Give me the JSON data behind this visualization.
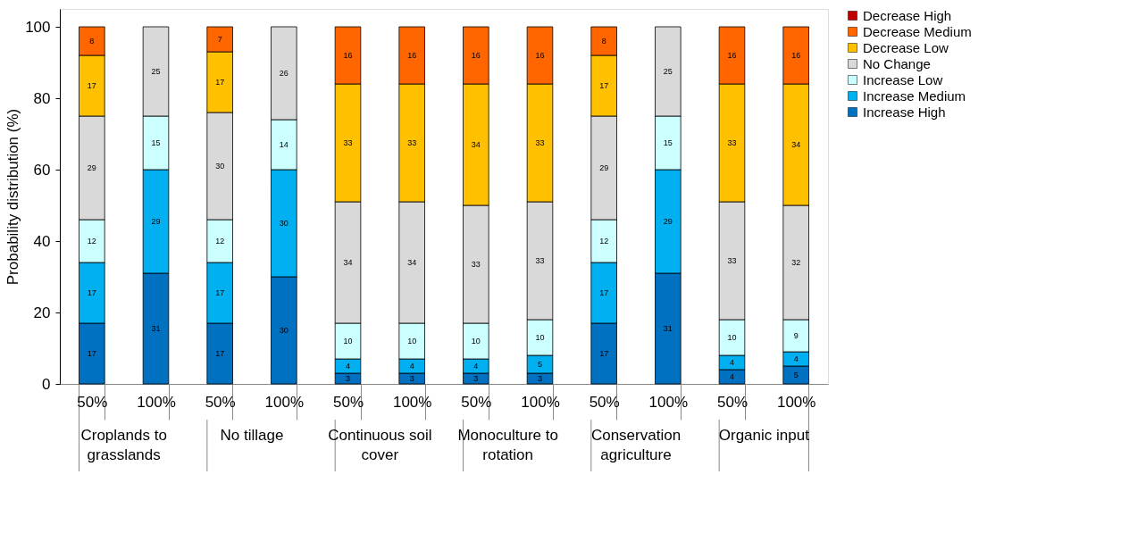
{
  "chart_data": {
    "type": "bar",
    "stacked": true,
    "ylabel": "Probability distribution (%)",
    "categories": [
      "50%",
      "100%",
      "50%",
      "100%",
      "50%",
      "100%",
      "50%",
      "100%",
      "50%",
      "100%",
      "50%",
      "100%"
    ],
    "annotations": [
      "Croplands to\ngrasslands",
      "No tillage",
      "Continuous soil\ncover",
      "Monoculture to\nrotation",
      "Conservation\nagriculture",
      "Organic input"
    ],
    "series": [
      {
        "name": "Increase High",
        "color": "#0070c0",
        "values": [
          17,
          31,
          17,
          30,
          3,
          3,
          3,
          3,
          17,
          31,
          4,
          5
        ]
      },
      {
        "name": "Increase Medium",
        "color": "#00b0f0",
        "values": [
          17,
          29,
          17,
          30,
          4,
          4,
          4,
          5,
          17,
          29,
          4,
          4
        ]
      },
      {
        "name": "Increase Low",
        "color": "#ccffff",
        "values": [
          12,
          15,
          12,
          14,
          10,
          10,
          10,
          10,
          12,
          15,
          10,
          9
        ]
      },
      {
        "name": "No Change",
        "color": "#d9d9d9",
        "values": [
          29,
          25,
          30,
          26,
          34,
          34,
          33,
          33,
          29,
          25,
          33,
          32
        ]
      },
      {
        "name": "Decrease Low",
        "color": "#ffc000",
        "values": [
          17,
          null,
          17,
          null,
          33,
          33,
          34,
          33,
          17,
          null,
          33,
          34
        ]
      },
      {
        "name": "Decrease Medium",
        "color": "#ff6600",
        "values": [
          8,
          null,
          7,
          null,
          16,
          16,
          16,
          16,
          8,
          null,
          16,
          16
        ]
      },
      {
        "name": "Decrease High",
        "color": "#c00000",
        "values": [
          null,
          null,
          null,
          null,
          null,
          null,
          null,
          null,
          null,
          null,
          null,
          null
        ]
      }
    ],
    "data_labels": true,
    "ylim": [
      0,
      105
    ],
    "yticks": [
      0,
      20,
      40,
      60,
      80,
      100
    ],
    "grid": false,
    "legend": "right"
  }
}
